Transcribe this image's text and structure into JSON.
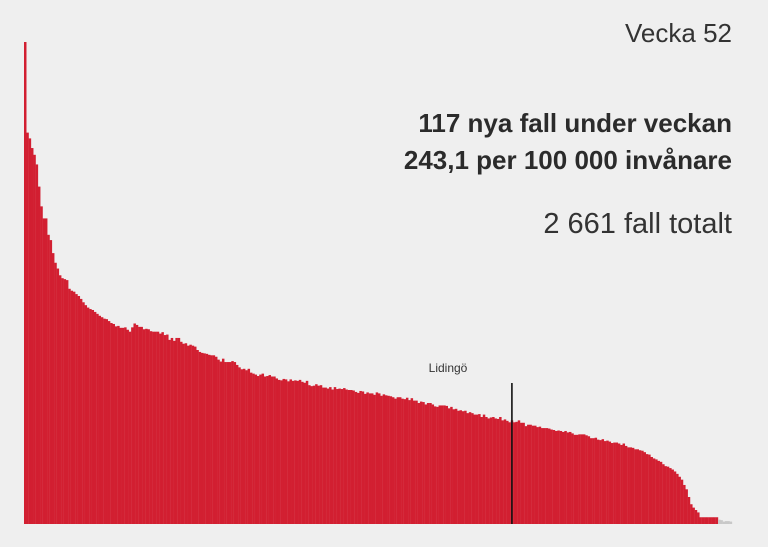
{
  "header": {
    "week": "Vecka 52",
    "new_cases": "117 nya fall under veckan",
    "per_capita": "243,1 per 100 000 invånare",
    "total": "2 661 fall totalt"
  },
  "chart_data": {
    "type": "bar",
    "title": "",
    "xlabel": "",
    "ylabel": "",
    "sorted": "descending",
    "bar_color": "#d21f31",
    "highlight_color": "#111111",
    "highlight": {
      "label": "Lidingö",
      "index": 209
    },
    "ylim": [
      0,
      1.0
    ],
    "values": [
      1.0,
      0.812,
      0.8,
      0.78,
      0.766,
      0.746,
      0.7,
      0.659,
      0.634,
      0.634,
      0.6,
      0.589,
      0.562,
      0.542,
      0.53,
      0.516,
      0.51,
      0.508,
      0.506,
      0.488,
      0.484,
      0.482,
      0.477,
      0.473,
      0.467,
      0.46,
      0.454,
      0.449,
      0.446,
      0.444,
      0.44,
      0.436,
      0.432,
      0.429,
      0.426,
      0.425,
      0.421,
      0.417,
      0.415,
      0.41,
      0.411,
      0.407,
      0.407,
      0.408,
      0.403,
      0.399,
      0.408,
      0.416,
      0.413,
      0.409,
      0.409,
      0.404,
      0.405,
      0.404,
      0.4,
      0.399,
      0.399,
      0.399,
      0.395,
      0.398,
      0.392,
      0.393,
      0.382,
      0.386,
      0.38,
      0.386,
      0.386,
      0.378,
      0.374,
      0.375,
      0.37,
      0.372,
      0.37,
      0.368,
      0.361,
      0.357,
      0.355,
      0.354,
      0.353,
      0.351,
      0.35,
      0.35,
      0.347,
      0.341,
      0.337,
      0.343,
      0.336,
      0.336,
      0.336,
      0.338,
      0.336,
      0.33,
      0.325,
      0.321,
      0.322,
      0.319,
      0.322,
      0.314,
      0.312,
      0.31,
      0.307,
      0.31,
      0.312,
      0.306,
      0.307,
      0.309,
      0.306,
      0.306,
      0.302,
      0.299,
      0.298,
      0.301,
      0.3,
      0.296,
      0.3,
      0.297,
      0.298,
      0.297,
      0.299,
      0.295,
      0.293,
      0.297,
      0.288,
      0.286,
      0.287,
      0.29,
      0.287,
      0.288,
      0.283,
      0.283,
      0.281,
      0.284,
      0.279,
      0.284,
      0.28,
      0.281,
      0.28,
      0.282,
      0.279,
      0.278,
      0.278,
      0.277,
      0.274,
      0.272,
      0.276,
      0.275,
      0.27,
      0.273,
      0.271,
      0.271,
      0.268,
      0.273,
      0.271,
      0.266,
      0.269,
      0.267,
      0.266,
      0.265,
      0.263,
      0.26,
      0.263,
      0.263,
      0.26,
      0.259,
      0.262,
      0.257,
      0.261,
      0.256,
      0.256,
      0.251,
      0.254,
      0.253,
      0.248,
      0.251,
      0.251,
      0.248,
      0.244,
      0.243,
      0.246,
      0.246,
      0.246,
      0.245,
      0.24,
      0.243,
      0.238,
      0.239,
      0.235,
      0.236,
      0.234,
      0.235,
      0.23,
      0.232,
      0.23,
      0.227,
      0.227,
      0.228,
      0.222,
      0.227,
      0.222,
      0.219,
      0.221,
      0.222,
      0.219,
      0.218,
      0.222,
      0.215,
      0.217,
      0.214,
      0.211,
      0.215,
      0.211,
      0.212,
      0.215,
      0.21,
      0.21,
      0.203,
      0.206,
      0.206,
      0.204,
      0.204,
      0.201,
      0.202,
      0.199,
      0.199,
      0.199,
      0.198,
      0.196,
      0.195,
      0.193,
      0.194,
      0.193,
      0.191,
      0.193,
      0.19,
      0.191,
      0.188,
      0.185,
      0.185,
      0.186,
      0.186,
      0.186,
      0.184,
      0.182,
      0.178,
      0.178,
      0.179,
      0.175,
      0.174,
      0.176,
      0.172,
      0.173,
      0.171,
      0.168,
      0.169,
      0.169,
      0.167,
      0.164,
      0.167,
      0.162,
      0.159,
      0.159,
      0.158,
      0.155,
      0.155,
      0.153,
      0.152,
      0.149,
      0.145,
      0.144,
      0.139,
      0.136,
      0.134,
      0.131,
      0.129,
      0.124,
      0.12,
      0.119,
      0.116,
      0.113,
      0.109,
      0.104,
      0.098,
      0.092,
      0.081,
      0.072,
      0.056,
      0.041,
      0.034,
      0.029,
      0.024,
      0.014,
      0.014,
      0.014,
      0.014,
      0.014,
      0.014,
      0.014,
      0.014,
      0.009,
      0.008,
      0.005,
      0.006,
      0.006,
      0.005
    ]
  }
}
